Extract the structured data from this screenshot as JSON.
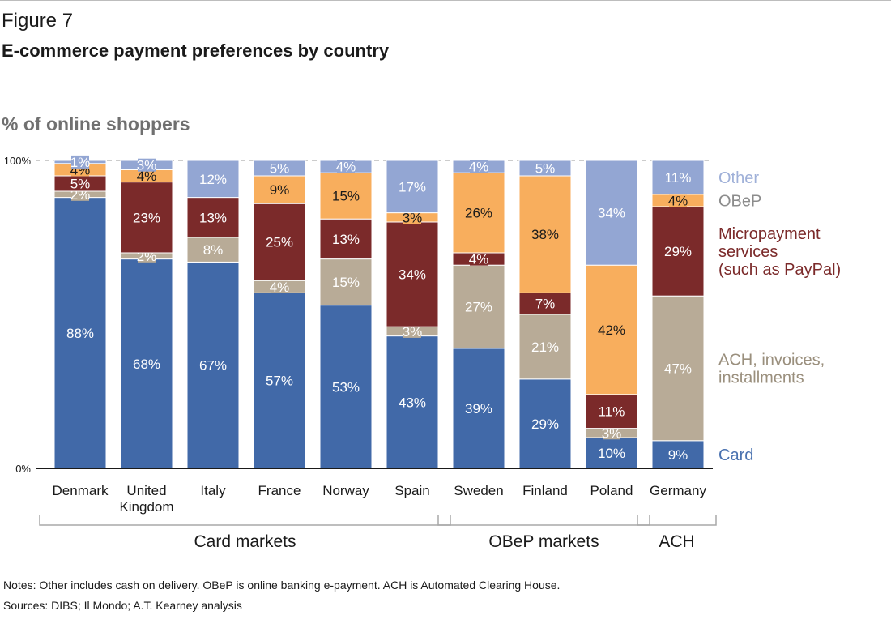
{
  "figure_label": "Figure 7",
  "title": "E-commerce payment preferences by country",
  "notes": "Notes: Other includes cash on delivery. OBeP is online banking e-payment. ACH is Automated Clearing House.",
  "sources": "Sources: DIBS; Il Mondo; A.T. Kearney analysis",
  "chart_data": {
    "type": "bar",
    "stacked": true,
    "ylabel": "% of online shoppers",
    "ylim": [
      0,
      100
    ],
    "yticks": [
      "0%",
      "100%"
    ],
    "categories": [
      [
        "Denmark"
      ],
      [
        "United",
        "Kingdom"
      ],
      [
        "Italy"
      ],
      [
        "France"
      ],
      [
        "Norway"
      ],
      [
        "Spain"
      ],
      [
        "Sweden"
      ],
      [
        "Finland"
      ],
      [
        "Poland"
      ],
      [
        "Germany"
      ]
    ],
    "series": [
      {
        "name": "Card",
        "color": "#4169a8",
        "label_color": "#ffffff",
        "legend_color": "#4a72b0",
        "legend": [
          "Card"
        ],
        "values": [
          88,
          68,
          67,
          57,
          53,
          43,
          39,
          29,
          10,
          9
        ]
      },
      {
        "name": "ACH, invoices, installments",
        "color": "#b8ab97",
        "label_color": "#ffffff",
        "legend_color": "#9a8f7d",
        "legend": [
          "ACH, invoices,",
          "installments"
        ],
        "values": [
          2,
          2,
          8,
          4,
          15,
          3,
          27,
          21,
          3,
          47
        ]
      },
      {
        "name": "Micropayment services (such as PayPal)",
        "color": "#7b2a2a",
        "label_color": "#ffffff",
        "legend_color": "#7b2a2a",
        "legend": [
          "Micropayment",
          "services",
          "(such as PayPal)"
        ],
        "values": [
          5,
          23,
          13,
          25,
          13,
          34,
          4,
          7,
          11,
          29
        ]
      },
      {
        "name": "OBeP",
        "color": "#f8ae5d",
        "label_color": "#1a1a1a",
        "legend_color": "#8c8c8c",
        "legend": [
          "OBeP"
        ],
        "values": [
          4,
          4,
          0,
          9,
          15,
          3,
          26,
          38,
          42,
          4
        ]
      },
      {
        "name": "Other",
        "color": "#93a6d3",
        "label_color": "#ffffff",
        "legend_color": "#9fb0d8",
        "legend": [
          "Other"
        ],
        "values": [
          1,
          3,
          12,
          5,
          4,
          17,
          4,
          5,
          34,
          11
        ]
      }
    ],
    "groups": [
      {
        "label": "Card markets",
        "from": 0,
        "to": 5
      },
      {
        "label": "OBeP markets",
        "from": 6,
        "to": 8
      },
      {
        "label": "ACH",
        "from": 9,
        "to": 9
      }
    ],
    "grid": false
  }
}
